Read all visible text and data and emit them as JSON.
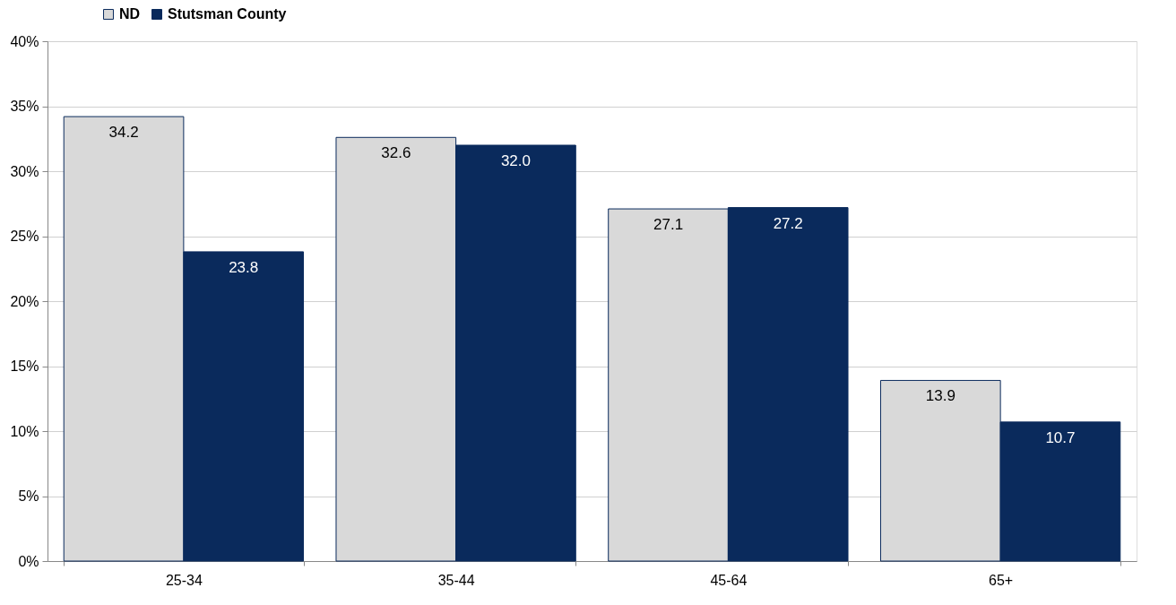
{
  "chart_data": {
    "type": "bar",
    "categories": [
      "25-34",
      "35-44",
      "45-64",
      "65+"
    ],
    "series": [
      {
        "name": "ND",
        "color": "#d9d9d9",
        "values": [
          34.2,
          32.6,
          27.1,
          13.9
        ],
        "value_labels": [
          "34.2",
          "32.6",
          "27.1",
          "13.9"
        ]
      },
      {
        "name": "Stutsman County",
        "color": "#0a2a5c",
        "values": [
          23.8,
          32.0,
          27.2,
          10.7
        ],
        "value_labels": [
          "23.8",
          "32.0",
          "27.2",
          "10.7"
        ]
      }
    ],
    "ylim": [
      0,
      40
    ],
    "yticks": [
      {
        "value": 0,
        "label": "0%"
      },
      {
        "value": 5,
        "label": "5%"
      },
      {
        "value": 10,
        "label": "10%"
      },
      {
        "value": 15,
        "label": "15%"
      },
      {
        "value": 20,
        "label": "20%"
      },
      {
        "value": 25,
        "label": "25%"
      },
      {
        "value": 30,
        "label": "30%"
      },
      {
        "value": 35,
        "label": "35%"
      },
      {
        "value": 40,
        "label": "40%"
      }
    ],
    "grid": "y",
    "legend": "top left"
  }
}
